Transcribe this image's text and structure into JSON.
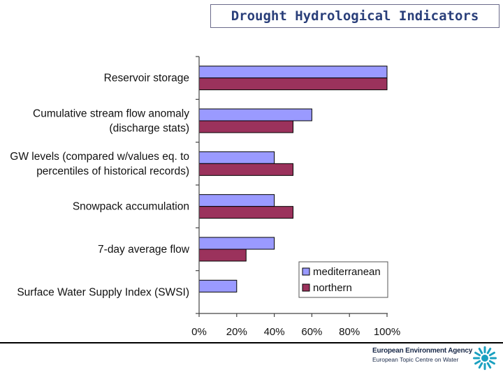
{
  "slide": {
    "title": "Drought Hydrological Indicators"
  },
  "colors": {
    "mediterranean": "#9a9aff",
    "northern": "#9b325c",
    "title": "#2a3f7a"
  },
  "chart_data": {
    "type": "bar",
    "orientation": "horizontal",
    "categories": [
      [
        "Reservoir storage"
      ],
      [
        "Cumulative stream flow anomaly",
        "(discharge stats)"
      ],
      [
        "GW levels (compared w/values eq. to",
        "percentiles of historical records)"
      ],
      [
        "Snowpack accumulation"
      ],
      [
        "7-day average flow"
      ],
      [
        "Surface Water Supply Index (SWSI)"
      ]
    ],
    "series": [
      {
        "name": "mediterranean",
        "values": [
          100,
          60,
          40,
          40,
          40,
          20
        ]
      },
      {
        "name": "northern",
        "values": [
          100,
          50,
          50,
          50,
          25,
          0
        ]
      }
    ],
    "xlim": [
      0,
      100
    ],
    "xticks": [
      "0%",
      "20%",
      "40%",
      "60%",
      "80%",
      "100%"
    ],
    "legend": [
      "mediterranean",
      "northern"
    ],
    "legend_position": "bottom-right",
    "grid": false
  },
  "footer": {
    "agency": "European Environment Agency",
    "centre": "European Topic Centre on Water"
  }
}
